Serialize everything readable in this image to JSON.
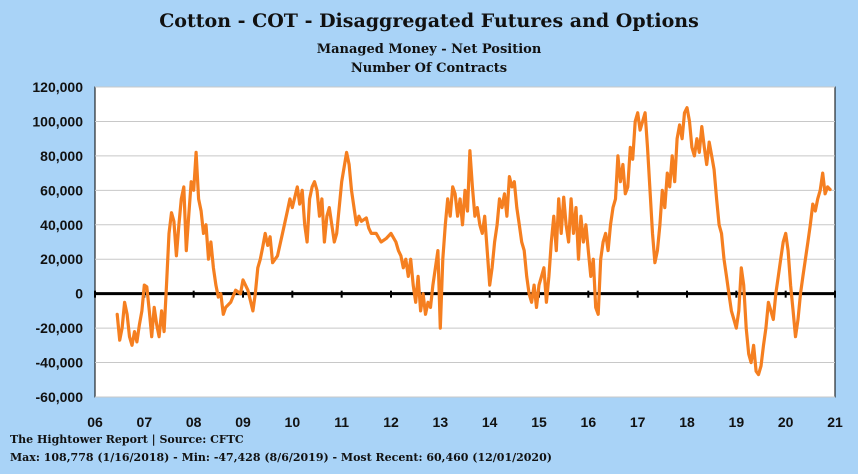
{
  "chart_data": {
    "type": "line",
    "title": "Cotton - COT - Disaggregated Futures and Options",
    "subtitle": "Managed Money - Net Position",
    "ylabel": "Number Of Contracts",
    "ylim": [
      -60000,
      120000
    ],
    "yticks": [
      "120,000",
      "100,000",
      "80,000",
      "60,000",
      "40,000",
      "20,000",
      "0",
      "-20,000",
      "-40,000",
      "-60,000"
    ],
    "xlim": [
      2006.0,
      2021.0
    ],
    "xticks": [
      "06",
      "07",
      "08",
      "09",
      "10",
      "11",
      "12",
      "13",
      "14",
      "15",
      "16",
      "17",
      "18",
      "19",
      "20",
      "21"
    ],
    "grid": true,
    "line_color": "#f57f20",
    "zero_line_color": "#000000",
    "series": [
      {
        "points": [
          [
            2006.45,
            -12000
          ],
          [
            2006.5,
            -27000
          ],
          [
            2006.55,
            -20000
          ],
          [
            2006.6,
            -5000
          ],
          [
            2006.65,
            -12000
          ],
          [
            2006.7,
            -25000
          ],
          [
            2006.75,
            -30000
          ],
          [
            2006.8,
            -22000
          ],
          [
            2006.85,
            -28000
          ],
          [
            2006.9,
            -18000
          ],
          [
            2006.95,
            -10000
          ],
          [
            2007.0,
            5000
          ],
          [
            2007.05,
            4000
          ],
          [
            2007.1,
            -10000
          ],
          [
            2007.15,
            -25000
          ],
          [
            2007.2,
            -8000
          ],
          [
            2007.25,
            -18000
          ],
          [
            2007.3,
            -25000
          ],
          [
            2007.35,
            -10000
          ],
          [
            2007.4,
            -22000
          ],
          [
            2007.45,
            5000
          ],
          [
            2007.5,
            35000
          ],
          [
            2007.55,
            47000
          ],
          [
            2007.6,
            42000
          ],
          [
            2007.65,
            22000
          ],
          [
            2007.7,
            40000
          ],
          [
            2007.75,
            55000
          ],
          [
            2007.8,
            62000
          ],
          [
            2007.85,
            25000
          ],
          [
            2007.9,
            45000
          ],
          [
            2007.95,
            65000
          ],
          [
            2008.0,
            60000
          ],
          [
            2008.05,
            82000
          ],
          [
            2008.1,
            55000
          ],
          [
            2008.15,
            48000
          ],
          [
            2008.2,
            35000
          ],
          [
            2008.25,
            40000
          ],
          [
            2008.3,
            20000
          ],
          [
            2008.35,
            30000
          ],
          [
            2008.4,
            15000
          ],
          [
            2008.45,
            5000
          ],
          [
            2008.5,
            -2000
          ],
          [
            2008.55,
            0
          ],
          [
            2008.6,
            -12000
          ],
          [
            2008.65,
            -8000
          ],
          [
            2008.75,
            -5000
          ],
          [
            2008.85,
            2000
          ],
          [
            2008.95,
            0
          ],
          [
            2009.0,
            8000
          ],
          [
            2009.1,
            2000
          ],
          [
            2009.2,
            -10000
          ],
          [
            2009.25,
            0
          ],
          [
            2009.3,
            15000
          ],
          [
            2009.35,
            20000
          ],
          [
            2009.4,
            27000
          ],
          [
            2009.45,
            35000
          ],
          [
            2009.5,
            28000
          ],
          [
            2009.55,
            33000
          ],
          [
            2009.6,
            18000
          ],
          [
            2009.7,
            22000
          ],
          [
            2009.8,
            35000
          ],
          [
            2009.9,
            48000
          ],
          [
            2009.95,
            55000
          ],
          [
            2010.0,
            50000
          ],
          [
            2010.1,
            62000
          ],
          [
            2010.15,
            52000
          ],
          [
            2010.2,
            60000
          ],
          [
            2010.25,
            40000
          ],
          [
            2010.3,
            30000
          ],
          [
            2010.35,
            55000
          ],
          [
            2010.4,
            62000
          ],
          [
            2010.45,
            65000
          ],
          [
            2010.5,
            60000
          ],
          [
            2010.55,
            45000
          ],
          [
            2010.6,
            55000
          ],
          [
            2010.65,
            30000
          ],
          [
            2010.7,
            45000
          ],
          [
            2010.75,
            50000
          ],
          [
            2010.8,
            40000
          ],
          [
            2010.85,
            30000
          ],
          [
            2010.9,
            35000
          ],
          [
            2011.0,
            65000
          ],
          [
            2011.1,
            82000
          ],
          [
            2011.15,
            75000
          ],
          [
            2011.2,
            60000
          ],
          [
            2011.25,
            50000
          ],
          [
            2011.3,
            40000
          ],
          [
            2011.35,
            45000
          ],
          [
            2011.4,
            42000
          ],
          [
            2011.5,
            44000
          ],
          [
            2011.55,
            38000
          ],
          [
            2011.6,
            35000
          ],
          [
            2011.7,
            35000
          ],
          [
            2011.8,
            30000
          ],
          [
            2011.9,
            32000
          ],
          [
            2012.0,
            35000
          ],
          [
            2012.1,
            30000
          ],
          [
            2012.15,
            25000
          ],
          [
            2012.2,
            22000
          ],
          [
            2012.25,
            15000
          ],
          [
            2012.3,
            20000
          ],
          [
            2012.35,
            10000
          ],
          [
            2012.4,
            20000
          ],
          [
            2012.45,
            5000
          ],
          [
            2012.5,
            -5000
          ],
          [
            2012.55,
            10000
          ],
          [
            2012.6,
            -10000
          ],
          [
            2012.65,
            0
          ],
          [
            2012.7,
            -12000
          ],
          [
            2012.75,
            -5000
          ],
          [
            2012.8,
            -8000
          ],
          [
            2012.85,
            5000
          ],
          [
            2012.9,
            15000
          ],
          [
            2012.95,
            25000
          ],
          [
            2013.0,
            -20000
          ],
          [
            2013.05,
            20000
          ],
          [
            2013.1,
            40000
          ],
          [
            2013.15,
            55000
          ],
          [
            2013.2,
            45000
          ],
          [
            2013.25,
            62000
          ],
          [
            2013.3,
            58000
          ],
          [
            2013.35,
            45000
          ],
          [
            2013.4,
            55000
          ],
          [
            2013.45,
            40000
          ],
          [
            2013.5,
            60000
          ],
          [
            2013.55,
            48000
          ],
          [
            2013.6,
            83000
          ],
          [
            2013.65,
            62000
          ],
          [
            2013.7,
            45000
          ],
          [
            2013.75,
            50000
          ],
          [
            2013.8,
            40000
          ],
          [
            2013.85,
            35000
          ],
          [
            2013.9,
            45000
          ],
          [
            2013.95,
            25000
          ],
          [
            2014.0,
            5000
          ],
          [
            2014.05,
            15000
          ],
          [
            2014.1,
            30000
          ],
          [
            2014.15,
            40000
          ],
          [
            2014.2,
            55000
          ],
          [
            2014.25,
            50000
          ],
          [
            2014.3,
            58000
          ],
          [
            2014.35,
            45000
          ],
          [
            2014.4,
            68000
          ],
          [
            2014.45,
            62000
          ],
          [
            2014.5,
            65000
          ],
          [
            2014.55,
            50000
          ],
          [
            2014.6,
            40000
          ],
          [
            2014.65,
            30000
          ],
          [
            2014.7,
            25000
          ],
          [
            2014.75,
            10000
          ],
          [
            2014.8,
            0
          ],
          [
            2014.85,
            -5000
          ],
          [
            2014.9,
            5000
          ],
          [
            2014.95,
            -8000
          ],
          [
            2015.0,
            5000
          ],
          [
            2015.05,
            10000
          ],
          [
            2015.1,
            15000
          ],
          [
            2015.15,
            -5000
          ],
          [
            2015.2,
            10000
          ],
          [
            2015.25,
            30000
          ],
          [
            2015.3,
            45000
          ],
          [
            2015.35,
            25000
          ],
          [
            2015.4,
            55000
          ],
          [
            2015.45,
            35000
          ],
          [
            2015.5,
            56000
          ],
          [
            2015.55,
            40000
          ],
          [
            2015.6,
            30000
          ],
          [
            2015.65,
            55000
          ],
          [
            2015.7,
            35000
          ],
          [
            2015.75,
            50000
          ],
          [
            2015.8,
            20000
          ],
          [
            2015.85,
            45000
          ],
          [
            2015.9,
            30000
          ],
          [
            2015.95,
            40000
          ],
          [
            2016.0,
            25000
          ],
          [
            2016.05,
            10000
          ],
          [
            2016.1,
            20000
          ],
          [
            2016.15,
            -8000
          ],
          [
            2016.2,
            -12000
          ],
          [
            2016.25,
            20000
          ],
          [
            2016.3,
            30000
          ],
          [
            2016.35,
            35000
          ],
          [
            2016.4,
            25000
          ],
          [
            2016.45,
            40000
          ],
          [
            2016.5,
            50000
          ],
          [
            2016.55,
            55000
          ],
          [
            2016.6,
            80000
          ],
          [
            2016.65,
            65000
          ],
          [
            2016.7,
            75000
          ],
          [
            2016.75,
            58000
          ],
          [
            2016.8,
            62000
          ],
          [
            2016.85,
            85000
          ],
          [
            2016.9,
            78000
          ],
          [
            2016.95,
            100000
          ],
          [
            2017.0,
            105000
          ],
          [
            2017.05,
            95000
          ],
          [
            2017.1,
            100000
          ],
          [
            2017.15,
            105000
          ],
          [
            2017.2,
            85000
          ],
          [
            2017.25,
            60000
          ],
          [
            2017.3,
            35000
          ],
          [
            2017.35,
            18000
          ],
          [
            2017.4,
            25000
          ],
          [
            2017.45,
            40000
          ],
          [
            2017.5,
            60000
          ],
          [
            2017.55,
            50000
          ],
          [
            2017.6,
            70000
          ],
          [
            2017.65,
            62000
          ],
          [
            2017.7,
            80000
          ],
          [
            2017.75,
            65000
          ],
          [
            2017.8,
            90000
          ],
          [
            2017.85,
            98000
          ],
          [
            2017.9,
            90000
          ],
          [
            2017.95,
            105000
          ],
          [
            2018.0,
            108000
          ],
          [
            2018.05,
            100000
          ],
          [
            2018.1,
            85000
          ],
          [
            2018.15,
            80000
          ],
          [
            2018.2,
            90000
          ],
          [
            2018.25,
            82000
          ],
          [
            2018.3,
            97000
          ],
          [
            2018.35,
            85000
          ],
          [
            2018.4,
            75000
          ],
          [
            2018.45,
            88000
          ],
          [
            2018.5,
            80000
          ],
          [
            2018.55,
            72000
          ],
          [
            2018.6,
            55000
          ],
          [
            2018.65,
            40000
          ],
          [
            2018.7,
            35000
          ],
          [
            2018.75,
            20000
          ],
          [
            2018.8,
            10000
          ],
          [
            2018.85,
            0
          ],
          [
            2018.9,
            -10000
          ],
          [
            2018.95,
            -15000
          ],
          [
            2019.0,
            -20000
          ],
          [
            2019.05,
            -10000
          ],
          [
            2019.1,
            15000
          ],
          [
            2019.15,
            5000
          ],
          [
            2019.2,
            -20000
          ],
          [
            2019.25,
            -35000
          ],
          [
            2019.3,
            -40000
          ],
          [
            2019.35,
            -30000
          ],
          [
            2019.4,
            -45000
          ],
          [
            2019.45,
            -47000
          ],
          [
            2019.5,
            -42000
          ],
          [
            2019.55,
            -30000
          ],
          [
            2019.6,
            -20000
          ],
          [
            2019.65,
            -5000
          ],
          [
            2019.7,
            -10000
          ],
          [
            2019.75,
            -15000
          ],
          [
            2019.8,
            0
          ],
          [
            2019.85,
            10000
          ],
          [
            2019.9,
            20000
          ],
          [
            2019.95,
            30000
          ],
          [
            2020.0,
            35000
          ],
          [
            2020.05,
            25000
          ],
          [
            2020.1,
            5000
          ],
          [
            2020.15,
            -10000
          ],
          [
            2020.2,
            -25000
          ],
          [
            2020.25,
            -15000
          ],
          [
            2020.3,
            0
          ],
          [
            2020.35,
            10000
          ],
          [
            2020.4,
            20000
          ],
          [
            2020.45,
            30000
          ],
          [
            2020.5,
            40000
          ],
          [
            2020.55,
            52000
          ],
          [
            2020.6,
            48000
          ],
          [
            2020.65,
            55000
          ],
          [
            2020.7,
            60000
          ],
          [
            2020.75,
            70000
          ],
          [
            2020.8,
            58000
          ],
          [
            2020.85,
            62000
          ],
          [
            2020.9,
            60460
          ]
        ]
      }
    ]
  },
  "footer": {
    "source": "The Hightower Report | Source: CFTC",
    "stats": "Max: 108,778 (1/16/2018)  - Min: -47,428 (8/6/2019) - Most Recent: 60,460 (12/01/2020)"
  }
}
